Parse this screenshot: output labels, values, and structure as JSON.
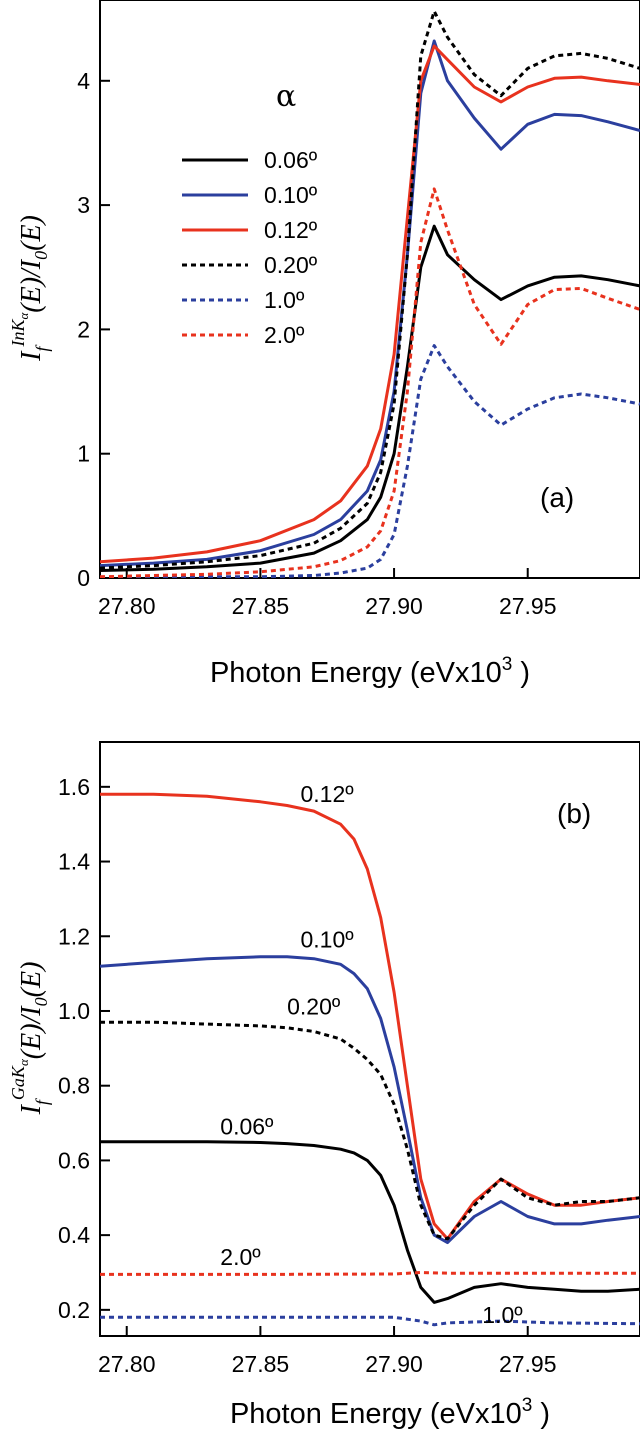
{
  "colors": {
    "black": "#000000",
    "blue": "#2b3f9e",
    "red": "#e8321e"
  },
  "chart_data": [
    {
      "type": "line",
      "panel_label": "(a)",
      "xlabel": "Photon Energy (eVx10",
      "xlabel_sup": "3",
      "xlabel_close": " )",
      "ylabel_main": "I",
      "ylabel_sub": "f",
      "ylabel_sup": "InK",
      "ylabel_sup_sub": "α",
      "ylabel_rest": "(E)/I",
      "ylabel_rest_sub": "0",
      "ylabel_end": "(E)",
      "xlim": [
        27.79,
        27.992
      ],
      "ylim": [
        0,
        4.65
      ],
      "xticks": [
        "27.80",
        "27.85",
        "27.90",
        "27.95"
      ],
      "xtick_values": [
        27.8,
        27.85,
        27.9,
        27.95
      ],
      "yticks": [
        "0",
        "1",
        "2",
        "3",
        "4"
      ],
      "ytick_values": [
        0,
        1,
        2,
        3,
        4
      ],
      "legend_title": "α",
      "legend_position": "upper-left",
      "series": [
        {
          "name": "0.06º",
          "color_key": "black",
          "dash": false,
          "x": [
            27.79,
            27.81,
            27.83,
            27.85,
            27.87,
            27.88,
            27.89,
            27.895,
            27.9,
            27.905,
            27.91,
            27.915,
            27.92,
            27.93,
            27.94,
            27.95,
            27.96,
            27.97,
            27.98,
            27.992
          ],
          "y": [
            0.06,
            0.07,
            0.09,
            0.12,
            0.2,
            0.3,
            0.47,
            0.65,
            1.0,
            1.7,
            2.5,
            2.83,
            2.6,
            2.4,
            2.24,
            2.35,
            2.42,
            2.43,
            2.4,
            2.35
          ]
        },
        {
          "name": "0.10º",
          "color_key": "blue",
          "dash": false,
          "x": [
            27.79,
            27.81,
            27.83,
            27.85,
            27.87,
            27.88,
            27.89,
            27.895,
            27.9,
            27.905,
            27.91,
            27.915,
            27.92,
            27.93,
            27.94,
            27.95,
            27.96,
            27.97,
            27.98,
            27.992
          ],
          "y": [
            0.1,
            0.12,
            0.15,
            0.22,
            0.35,
            0.47,
            0.7,
            0.95,
            1.5,
            2.6,
            3.9,
            4.32,
            4.0,
            3.7,
            3.45,
            3.65,
            3.73,
            3.72,
            3.67,
            3.6
          ]
        },
        {
          "name": "0.12º",
          "color_key": "red",
          "dash": false,
          "x": [
            27.79,
            27.81,
            27.83,
            27.85,
            27.87,
            27.88,
            27.89,
            27.895,
            27.9,
            27.905,
            27.91,
            27.915,
            27.92,
            27.93,
            27.94,
            27.95,
            27.96,
            27.97,
            27.98,
            27.992
          ],
          "y": [
            0.13,
            0.16,
            0.21,
            0.3,
            0.47,
            0.62,
            0.9,
            1.2,
            1.8,
            2.9,
            4.0,
            4.28,
            4.17,
            3.95,
            3.83,
            3.95,
            4.02,
            4.03,
            4.0,
            3.97
          ]
        },
        {
          "name": "0.20º",
          "color_key": "black",
          "dash": true,
          "x": [
            27.79,
            27.81,
            27.83,
            27.85,
            27.87,
            27.88,
            27.89,
            27.895,
            27.9,
            27.905,
            27.91,
            27.915,
            27.92,
            27.93,
            27.94,
            27.95,
            27.96,
            27.97,
            27.98,
            27.992
          ],
          "y": [
            0.08,
            0.1,
            0.13,
            0.18,
            0.28,
            0.4,
            0.6,
            0.85,
            1.4,
            2.6,
            4.2,
            4.56,
            4.35,
            4.05,
            3.88,
            4.1,
            4.2,
            4.22,
            4.18,
            4.1
          ]
        },
        {
          "name": "1.0º",
          "color_key": "blue",
          "dash": true,
          "x": [
            27.79,
            27.81,
            27.83,
            27.85,
            27.87,
            27.88,
            27.89,
            27.895,
            27.9,
            27.905,
            27.91,
            27.915,
            27.92,
            27.93,
            27.94,
            27.95,
            27.96,
            27.97,
            27.98,
            27.992
          ],
          "y": [
            0.0,
            0.0,
            0.01,
            0.01,
            0.02,
            0.04,
            0.08,
            0.15,
            0.35,
            0.9,
            1.6,
            1.87,
            1.7,
            1.42,
            1.23,
            1.36,
            1.45,
            1.48,
            1.45,
            1.4
          ]
        },
        {
          "name": "2.0º",
          "color_key": "red",
          "dash": true,
          "x": [
            27.79,
            27.81,
            27.83,
            27.85,
            27.87,
            27.88,
            27.89,
            27.895,
            27.9,
            27.905,
            27.91,
            27.915,
            27.92,
            27.93,
            27.94,
            27.95,
            27.96,
            27.97,
            27.98,
            27.992
          ],
          "y": [
            0.01,
            0.02,
            0.03,
            0.05,
            0.09,
            0.14,
            0.25,
            0.38,
            0.7,
            1.5,
            2.7,
            3.13,
            2.8,
            2.2,
            1.88,
            2.2,
            2.32,
            2.33,
            2.25,
            2.16
          ]
        }
      ]
    },
    {
      "type": "line",
      "panel_label": "(b)",
      "xlabel": "Photon Energy (eVx10",
      "xlabel_sup": "3",
      "xlabel_close": " )",
      "ylabel_main": "I",
      "ylabel_sub": "f",
      "ylabel_sup": "GaK",
      "ylabel_sup_sub": "α",
      "ylabel_rest": "(E)/I",
      "ylabel_rest_sub": "0",
      "ylabel_end": "(E)",
      "xlim": [
        27.79,
        27.992
      ],
      "ylim": [
        0.13,
        1.72
      ],
      "xticks": [
        "27.80",
        "27.85",
        "27.90",
        "27.95"
      ],
      "xtick_values": [
        27.8,
        27.85,
        27.9,
        27.95
      ],
      "yticks": [
        "0.2",
        "0.4",
        "0.6",
        "0.8",
        "1.0",
        "1.2",
        "1.4",
        "1.6"
      ],
      "ytick_values": [
        0.2,
        0.4,
        0.6,
        0.8,
        1.0,
        1.2,
        1.4,
        1.6
      ],
      "series": [
        {
          "name": "0.12º",
          "color_key": "red",
          "dash": false,
          "label_x": 27.865,
          "label_y": 1.56,
          "x": [
            27.79,
            27.81,
            27.83,
            27.85,
            27.86,
            27.87,
            27.88,
            27.885,
            27.89,
            27.895,
            27.9,
            27.905,
            27.91,
            27.915,
            27.92,
            27.93,
            27.94,
            27.95,
            27.96,
            27.97,
            27.98,
            27.992
          ],
          "y": [
            1.58,
            1.58,
            1.575,
            1.56,
            1.55,
            1.535,
            1.5,
            1.46,
            1.38,
            1.25,
            1.05,
            0.8,
            0.55,
            0.43,
            0.39,
            0.49,
            0.55,
            0.51,
            0.48,
            0.48,
            0.49,
            0.5
          ]
        },
        {
          "name": "0.10º",
          "color_key": "blue",
          "dash": false,
          "label_x": 27.865,
          "label_y": 1.17,
          "x": [
            27.79,
            27.81,
            27.83,
            27.85,
            27.86,
            27.87,
            27.88,
            27.885,
            27.89,
            27.895,
            27.9,
            27.905,
            27.91,
            27.915,
            27.92,
            27.93,
            27.94,
            27.95,
            27.96,
            27.97,
            27.98,
            27.992
          ],
          "y": [
            1.12,
            1.13,
            1.14,
            1.145,
            1.145,
            1.14,
            1.125,
            1.1,
            1.06,
            0.98,
            0.85,
            0.68,
            0.5,
            0.4,
            0.38,
            0.45,
            0.49,
            0.45,
            0.43,
            0.43,
            0.44,
            0.45
          ]
        },
        {
          "name": "0.20º",
          "color_key": "black",
          "dash": true,
          "label_x": 27.86,
          "label_y": 0.99,
          "x": [
            27.79,
            27.81,
            27.83,
            27.85,
            27.86,
            27.87,
            27.88,
            27.885,
            27.89,
            27.895,
            27.9,
            27.905,
            27.91,
            27.915,
            27.92,
            27.93,
            27.94,
            27.95,
            27.96,
            27.97,
            27.98,
            27.992
          ],
          "y": [
            0.97,
            0.97,
            0.965,
            0.96,
            0.955,
            0.945,
            0.925,
            0.9,
            0.87,
            0.83,
            0.75,
            0.63,
            0.48,
            0.4,
            0.39,
            0.48,
            0.55,
            0.5,
            0.48,
            0.49,
            0.49,
            0.5
          ]
        },
        {
          "name": "0.06º",
          "color_key": "black",
          "dash": false,
          "label_x": 27.835,
          "label_y": 0.67,
          "x": [
            27.79,
            27.81,
            27.83,
            27.85,
            27.86,
            27.87,
            27.88,
            27.885,
            27.89,
            27.895,
            27.9,
            27.905,
            27.91,
            27.915,
            27.92,
            27.93,
            27.94,
            27.95,
            27.96,
            27.97,
            27.98,
            27.992
          ],
          "y": [
            0.65,
            0.65,
            0.65,
            0.648,
            0.645,
            0.64,
            0.63,
            0.62,
            0.6,
            0.56,
            0.48,
            0.36,
            0.26,
            0.22,
            0.23,
            0.26,
            0.27,
            0.26,
            0.255,
            0.25,
            0.25,
            0.255
          ]
        },
        {
          "name": "2.0º",
          "color_key": "red",
          "dash": true,
          "label_x": 27.835,
          "label_y": 0.32,
          "x": [
            27.79,
            27.85,
            27.9,
            27.91,
            27.92,
            27.95,
            27.992
          ],
          "y": [
            0.295,
            0.295,
            0.296,
            0.3,
            0.298,
            0.298,
            0.298
          ]
        },
        {
          "name": "1.0º",
          "color_key": "blue",
          "dash": true,
          "label_x": 27.933,
          "label_y": 0.165,
          "x": [
            27.79,
            27.85,
            27.9,
            27.91,
            27.915,
            27.92,
            27.94,
            27.96,
            27.992
          ],
          "y": [
            0.18,
            0.18,
            0.18,
            0.17,
            0.16,
            0.165,
            0.17,
            0.165,
            0.163
          ]
        }
      ]
    }
  ]
}
